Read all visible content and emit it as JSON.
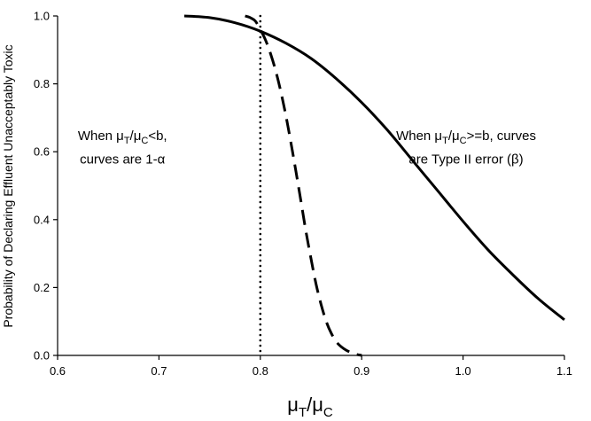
{
  "chart_data": {
    "type": "line",
    "title": "",
    "xlabel": {
      "base": "μ",
      "sub1": "T",
      "sep": "/μ",
      "sub2": "C"
    },
    "ylabel": "Probability of Declaring Effluent Unacceptably Toxic",
    "xlim": [
      0.6,
      1.1
    ],
    "ylim": [
      0.0,
      1.0
    ],
    "x_ticks": [
      "0.6",
      "0.7",
      "0.8",
      "0.9",
      "1.0",
      "1.1"
    ],
    "y_ticks": [
      "0.0",
      "0.2",
      "0.4",
      "0.6",
      "0.8",
      "1.0"
    ],
    "grid": false,
    "legend": "none",
    "series": [
      {
        "style": "solid",
        "x": [
          0.725,
          0.75,
          0.775,
          0.8,
          0.825,
          0.85,
          0.875,
          0.9,
          0.925,
          0.95,
          0.975,
          1.0,
          1.025,
          1.05,
          1.075,
          1.1
        ],
        "y": [
          1.0,
          0.995,
          0.98,
          0.955,
          0.92,
          0.875,
          0.815,
          0.745,
          0.665,
          0.575,
          0.485,
          0.395,
          0.31,
          0.235,
          0.165,
          0.105
        ]
      },
      {
        "style": "dashed",
        "x": [
          0.785,
          0.79,
          0.795,
          0.8,
          0.805,
          0.81,
          0.815,
          0.82,
          0.825,
          0.83,
          0.835,
          0.84,
          0.845,
          0.85,
          0.855,
          0.86,
          0.865,
          0.87,
          0.875,
          0.88,
          0.885,
          0.89,
          0.895,
          0.9
        ],
        "y": [
          1.0,
          0.995,
          0.985,
          0.96,
          0.93,
          0.89,
          0.84,
          0.78,
          0.71,
          0.63,
          0.545,
          0.455,
          0.365,
          0.285,
          0.21,
          0.15,
          0.1,
          0.065,
          0.04,
          0.025,
          0.015,
          0.008,
          0.003,
          0.0
        ]
      }
    ],
    "reference_line": {
      "x": 0.8,
      "style": "dotted"
    },
    "annotations": [
      {
        "lines": [
          [
            {
              "t": "When μ"
            },
            {
              "t": "T",
              "sub": true
            },
            {
              "t": "/μ"
            },
            {
              "t": "C",
              "sub": true
            },
            {
              "t": "<b,"
            }
          ],
          [
            {
              "t": "curves are 1-α"
            }
          ]
        ],
        "anchor_x": 0.664,
        "anchor_y": [
          0.635,
          0.565
        ]
      },
      {
        "lines": [
          [
            {
              "t": "When μ"
            },
            {
              "t": "T",
              "sub": true
            },
            {
              "t": "/μ"
            },
            {
              "t": "C",
              "sub": true
            },
            {
              "t": ">=b, curves"
            }
          ],
          [
            {
              "t": "are Type II error (β)"
            }
          ]
        ],
        "anchor_x": 1.003,
        "anchor_y": [
          0.635,
          0.565
        ]
      }
    ]
  }
}
